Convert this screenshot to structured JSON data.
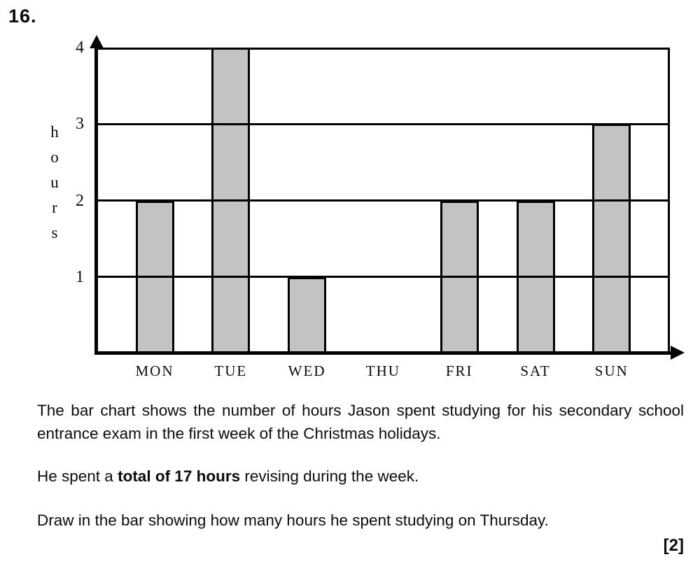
{
  "question": {
    "number": "16.",
    "marks": "[2]"
  },
  "chart_data": {
    "type": "bar",
    "categories": [
      "MON",
      "TUE",
      "WED",
      "THU",
      "FRI",
      "SAT",
      "SUN"
    ],
    "values": [
      2,
      4,
      1,
      0,
      2,
      2,
      3
    ],
    "missing_bar_category": "THU",
    "title": "",
    "xlabel": "",
    "ylabel": "hours",
    "yticks": [
      1,
      2,
      3,
      4
    ],
    "ylim": [
      0,
      4
    ],
    "grid": "horizontal",
    "legend": "none",
    "bar_color": "#c3c3c3",
    "axis_color": "#000000"
  },
  "text": {
    "paragraph1": "The bar chart shows the number of hours Jason spent studying for his secondary school entrance exam in the first week of the Christmas holidays.",
    "p2_prefix": "He spent a ",
    "p2_bold": "total of 17 hours",
    "p2_suffix": " revising during the week.",
    "paragraph3": "Draw in the bar showing how many hours he spent studying on Thursday."
  }
}
